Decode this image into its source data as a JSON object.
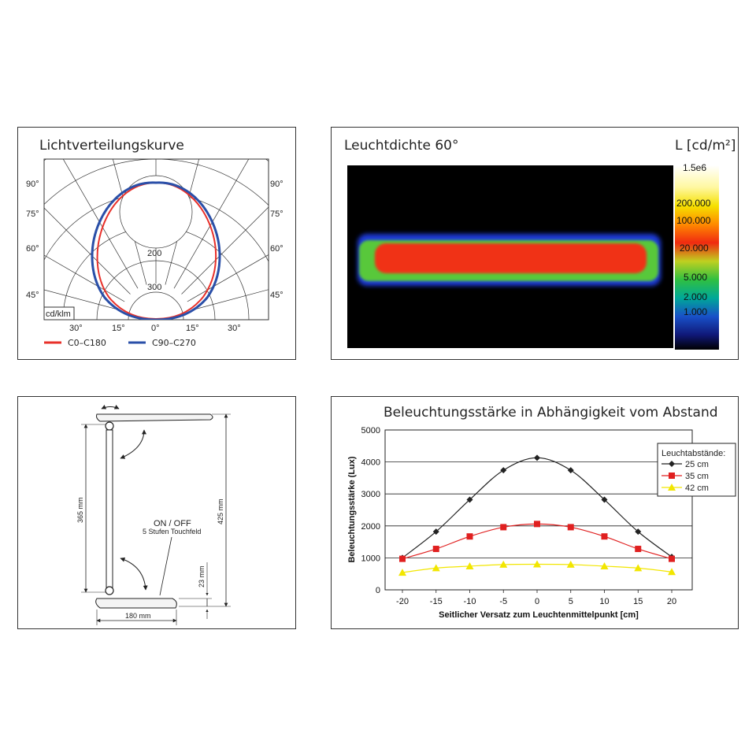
{
  "polar_panel": {
    "title": "Lichtverteilungskurve",
    "unit_label": "cd/klm",
    "left_angle_labels": [
      "90°",
      "75°",
      "60°",
      "45°"
    ],
    "right_angle_labels": [
      "90°",
      "75°",
      "60°",
      "45°"
    ],
    "bottom_angle_labels": [
      "30°",
      "15°",
      "0°",
      "15°",
      "30°"
    ],
    "radial_labels": [
      "200",
      "300"
    ],
    "legend": [
      {
        "label": "C0–C180",
        "color": "#e8302a"
      },
      {
        "label": "C90–C270",
        "color": "#2a4fa8"
      }
    ]
  },
  "luminance_panel": {
    "title": "Leuchtdichte 60°",
    "scale_title": "L [cd/m²]",
    "scale_labels": [
      "1.5e6",
      "200.000",
      "100.000",
      "20.000",
      "5.000",
      "2.000",
      "1.000"
    ]
  },
  "dimension_panel": {
    "on_off_label": "ON / OFF",
    "touch_label": "5 Stufen Touchfeld",
    "dim_height_arm": "365 mm",
    "dim_height_total": "425 mm",
    "dim_base_height": "23 mm",
    "dim_base_width": "180 mm"
  },
  "chart_data": {
    "type": "line",
    "title": "Beleuchtungsstärke in Abhängigkeit vom Abstand",
    "xlabel": "Seitlicher Versatz zum Leuchtenmittelpunkt [cm]",
    "ylabel": "Beleuchtungsstärke (Lux)",
    "x": [
      -20,
      -15,
      -10,
      -5,
      0,
      5,
      10,
      15,
      20
    ],
    "xlim": [
      -20,
      20
    ],
    "ylim": [
      0,
      5000
    ],
    "yticks": [
      0,
      1000,
      2000,
      3000,
      4000,
      5000
    ],
    "grid": true,
    "legend_title": "Leuchtabstände:",
    "legend_position": "top-right",
    "series": [
      {
        "name": "25 cm",
        "color": "#222222",
        "marker": "diamond",
        "values": [
          1000,
          1820,
          2820,
          3740,
          4130,
          3740,
          2820,
          1820,
          1030
        ]
      },
      {
        "name": "35 cm",
        "color": "#e02020",
        "marker": "square",
        "values": [
          970,
          1280,
          1670,
          1960,
          2060,
          1960,
          1670,
          1280,
          970
        ]
      },
      {
        "name": "42 cm",
        "color": "#f2e600",
        "marker": "triangle",
        "values": [
          540,
          680,
          740,
          790,
          800,
          790,
          740,
          680,
          560
        ]
      }
    ]
  }
}
